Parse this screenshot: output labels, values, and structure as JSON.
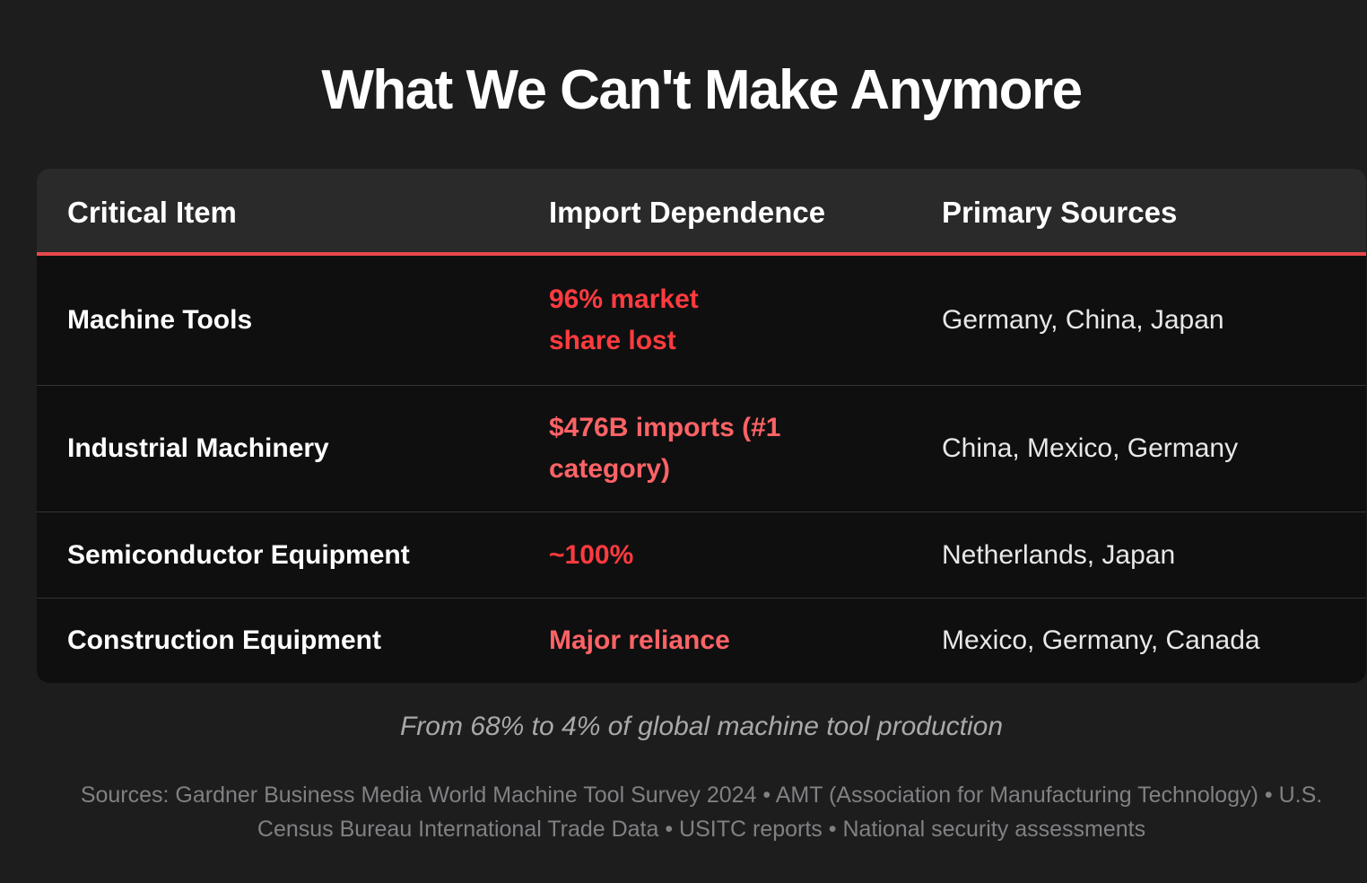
{
  "title": "What We Can't Make Anymore",
  "table": {
    "headers": [
      "Critical Item",
      "Import Dependence",
      "Primary Sources"
    ],
    "rows": [
      {
        "item": "Machine Tools",
        "dependence": "96% market share lost",
        "sources": "Germany, China, Japan"
      },
      {
        "item": "Industrial Machinery",
        "dependence": "$476B imports (#1 category)",
        "sources": "China, Mexico, Germany"
      },
      {
        "item": "Semiconductor Equipment",
        "dependence": "~100%",
        "sources": "Netherlands, Japan"
      },
      {
        "item": "Construction Equipment",
        "dependence": "Major reliance",
        "sources": "Mexico, Germany, Canada"
      }
    ]
  },
  "caption": "From 68% to 4% of global machine tool production",
  "sources_note": "Sources: Gardner Business Media World Machine Tool Survey 2024 • AMT (Association for Manufacturing Technology) • U.S. Census Bureau International Trade Data • USITC reports • National security assessments",
  "colors": {
    "background": "#1d1d1e",
    "header_background": "#2a2a2b",
    "accent_rule": "#e8484b",
    "dependence_strong": "#ff3b3f",
    "dependence_soft": "#ff6366"
  }
}
